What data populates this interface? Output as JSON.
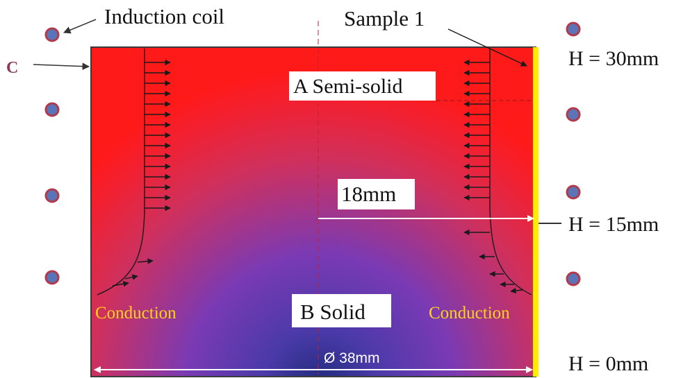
{
  "labels": {
    "induction_coil": "Induction coil",
    "sample": "Sample 1",
    "point_c": "C",
    "region_a": "A Semi-solid",
    "region_b": "B Solid",
    "conduction_left": "Conduction",
    "conduction_right": "Conduction",
    "radius": "18mm",
    "diameter": "Ø 38mm",
    "height_top": "H = 30mm",
    "height_mid": "H = 15mm",
    "height_bottom": "H = 0mm"
  },
  "colors": {
    "hot_region": "#ff1a1a",
    "cold_core": "#2a2a8a",
    "mid_core": "#7a3fc8",
    "coil_fill": "#5b74b8",
    "coil_stroke": "#b23a4a",
    "sample_line": "#ffee00",
    "conduction_text": "#ffd21a",
    "label_box": "#ffffff"
  },
  "icons": {
    "coil": "coil-cross-section-icon",
    "arrow": "heat-flux-arrow-icon"
  }
}
